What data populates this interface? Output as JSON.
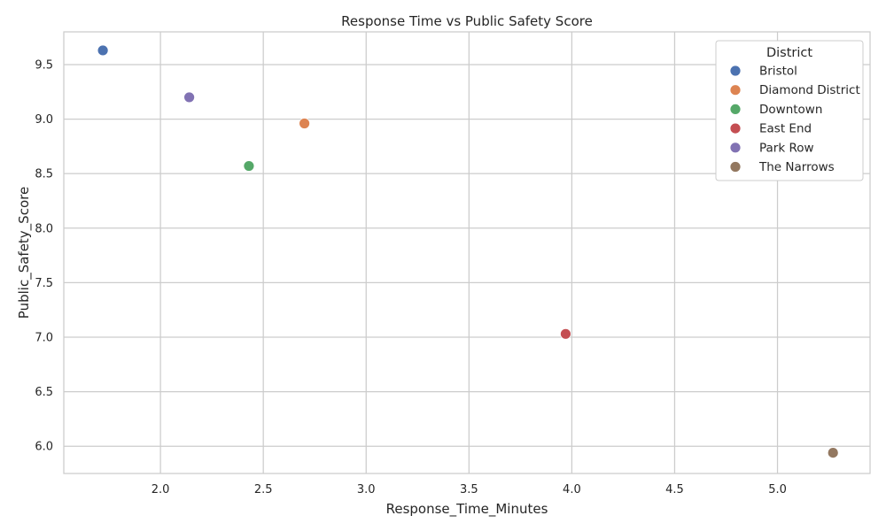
{
  "chart_data": {
    "type": "scatter",
    "title": "Response Time vs Public Safety Score",
    "xlabel": "Response_Time_Minutes",
    "ylabel": "Public_Safety_Score",
    "xlim": [
      1.53,
      5.45
    ],
    "ylim": [
      5.75,
      9.8
    ],
    "xticks": [
      "2.0",
      "2.5",
      "3.0",
      "3.5",
      "4.0",
      "4.5",
      "5.0"
    ],
    "yticks": [
      "6.0",
      "6.5",
      "7.0",
      "7.5",
      "8.0",
      "8.5",
      "9.0",
      "9.5"
    ],
    "grid": true,
    "legend": {
      "title": "District",
      "placement": "top-right"
    },
    "series": [
      {
        "name": "Bristol",
        "color": "#4c72b0",
        "points": [
          {
            "x": 1.72,
            "y": 9.63
          }
        ]
      },
      {
        "name": "Diamond District",
        "color": "#dd8452",
        "points": [
          {
            "x": 2.7,
            "y": 8.96
          }
        ]
      },
      {
        "name": "Downtown",
        "color": "#55a868",
        "points": [
          {
            "x": 2.43,
            "y": 8.57
          }
        ]
      },
      {
        "name": "East End",
        "color": "#c44e52",
        "points": [
          {
            "x": 3.97,
            "y": 7.03
          }
        ]
      },
      {
        "name": "Park Row",
        "color": "#8172b3",
        "points": [
          {
            "x": 2.14,
            "y": 9.2
          }
        ]
      },
      {
        "name": "The Narrows",
        "color": "#937860",
        "points": [
          {
            "x": 5.27,
            "y": 5.94
          }
        ]
      }
    ]
  }
}
